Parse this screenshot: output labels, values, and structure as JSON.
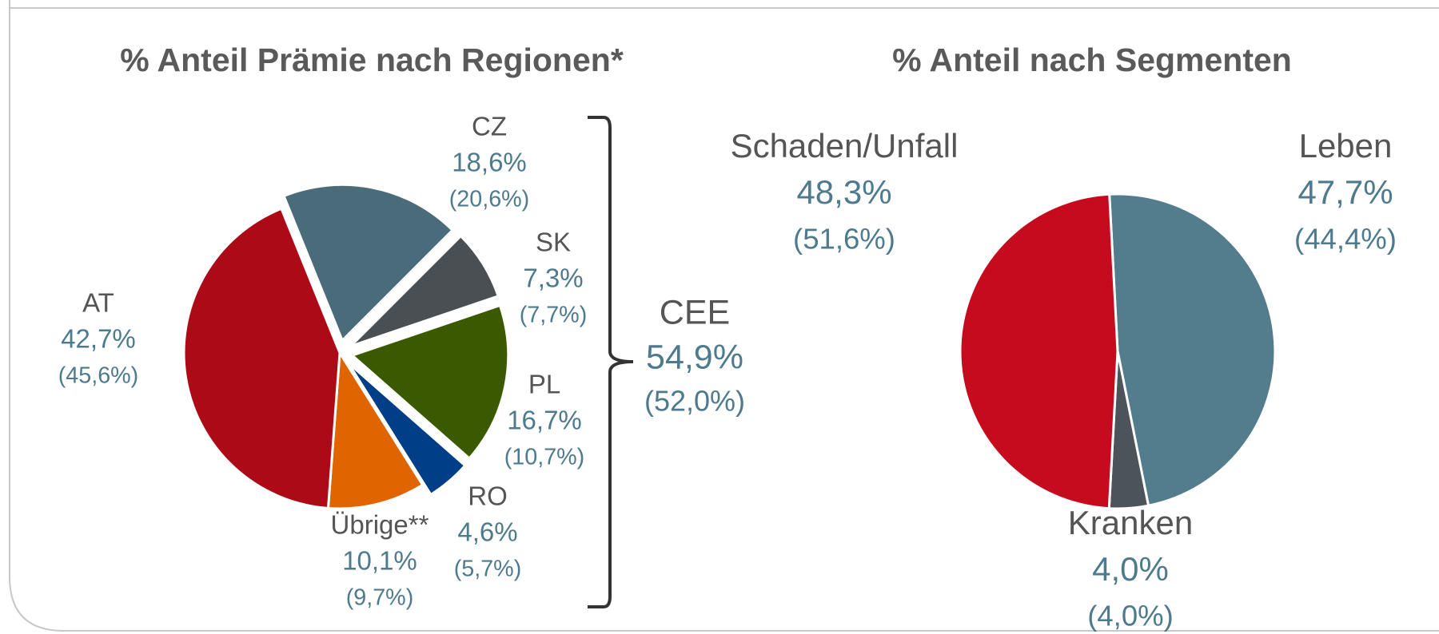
{
  "chart_data": [
    {
      "type": "pie",
      "title": "% Anteil Prämie nach Regionen*",
      "categories": [
        "CZ",
        "SK",
        "PL",
        "RO",
        "Übrige**",
        "AT"
      ],
      "values": [
        18.6,
        7.3,
        16.7,
        4.6,
        10.1,
        42.7
      ],
      "value_labels": [
        "18,6%",
        "7,3%",
        "16,7%",
        "4,6%",
        "10,1%",
        "42,7%"
      ],
      "previous_labels": [
        "(20,6%)",
        "(7,7%)",
        "(10,7%)",
        "(5,7%)",
        "(9,7%)",
        "(45,6%)"
      ],
      "colors": [
        "#4a6b7a",
        "#4a4f54",
        "#3b5a00",
        "#003f87",
        "#e06400",
        "#ad0a18"
      ],
      "exploded": [
        true,
        true,
        true,
        true,
        false,
        false
      ],
      "group": {
        "name": "CEE",
        "value_label": "54,9%",
        "previous_label": "(52,0%)"
      }
    },
    {
      "type": "pie",
      "title": "% Anteil nach Segmenten",
      "categories": [
        "Leben",
        "Kranken",
        "Schaden/Unfall"
      ],
      "values": [
        47.7,
        4.0,
        48.3
      ],
      "value_labels": [
        "47,7%",
        "4,0%",
        "48,3%"
      ],
      "previous_labels": [
        "(44,4%)",
        "(4,0%)",
        "(51,6%)"
      ],
      "colors": [
        "#537c8c",
        "#4d5459",
        "#c60b1e"
      ],
      "exploded": [
        false,
        false,
        false
      ]
    }
  ]
}
